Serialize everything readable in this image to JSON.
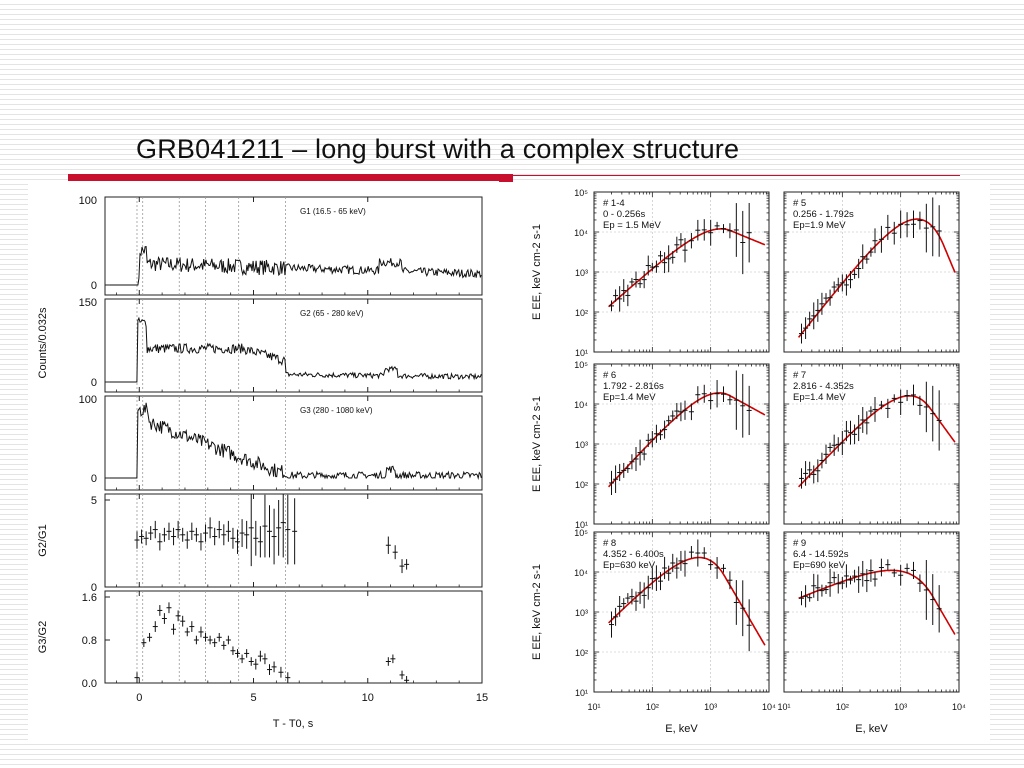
{
  "slide": {
    "title": "GRB041211 – long burst with a complex structure",
    "accent_color": "#c8102e"
  },
  "chart_data": [
    {
      "type": "line",
      "panels": [
        {
          "label": "G1 (16.5 - 65 keV)",
          "ylim": [
            0,
            100
          ],
          "yticks": [
            "100",
            "0"
          ],
          "shape": "g1"
        },
        {
          "label": "G2 (65 - 280 keV)",
          "ylim": [
            0,
            150
          ],
          "yticks": [
            "150",
            "0"
          ],
          "shape": "g2"
        },
        {
          "label": "G3 (280 - 1080 keV)",
          "ylim": [
            0,
            100
          ],
          "yticks": [
            "100",
            "0"
          ],
          "shape": "g3"
        }
      ],
      "ylabel_counts": "Counts/0.032s",
      "xlabel": "T - T0, s",
      "xlim": [
        -1.5,
        15
      ],
      "xticks": [
        "0",
        "5",
        "10",
        "15"
      ],
      "dashed_markers_x": [
        -0.1,
        0.15,
        1.75,
        2.9,
        4.35,
        6.4
      ]
    },
    {
      "type": "scatter",
      "name": "G2/G1",
      "ylabel": "G2/G1",
      "ylim": [
        0,
        5
      ],
      "yticks": [
        "5",
        "0"
      ],
      "x": [
        -0.1,
        0.1,
        0.3,
        0.5,
        0.7,
        0.9,
        1.1,
        1.3,
        1.5,
        1.7,
        1.9,
        2.1,
        2.3,
        2.5,
        2.7,
        2.9,
        3.1,
        3.3,
        3.5,
        3.7,
        3.9,
        4.1,
        4.3,
        4.5,
        4.7,
        4.9,
        5.1,
        5.3,
        5.5,
        5.7,
        5.9,
        6.1,
        6.3,
        6.5,
        6.8,
        10.9,
        11.2,
        11.5,
        11.7
      ],
      "y": [
        2.7,
        2.9,
        2.8,
        3.1,
        3.3,
        2.6,
        3.0,
        3.2,
        2.9,
        3.3,
        3.0,
        2.7,
        3.2,
        3.0,
        2.6,
        3.1,
        3.4,
        2.9,
        3.3,
        3.0,
        3.2,
        2.8,
        2.6,
        3.1,
        3.0,
        3.4,
        2.8,
        2.6,
        3.5,
        3.2,
        2.9,
        3.4,
        3.7,
        3.3,
        3.2,
        2.4,
        2.0,
        1.2,
        1.3
      ],
      "yerr": [
        0.5,
        0.4,
        0.4,
        0.4,
        0.5,
        0.5,
        0.4,
        0.5,
        0.5,
        0.5,
        0.4,
        0.5,
        0.5,
        0.4,
        0.5,
        0.5,
        0.6,
        0.5,
        0.5,
        0.6,
        0.6,
        0.6,
        0.7,
        0.8,
        0.8,
        2.2,
        1.0,
        0.9,
        1.8,
        1.5,
        1.6,
        1.6,
        2.0,
        2.0,
        1.9,
        0.5,
        0.4,
        0.4,
        0.3
      ]
    },
    {
      "type": "scatter",
      "name": "G3/G2",
      "ylabel": "G3/G2",
      "ylim": [
        0,
        1.6
      ],
      "yticks": [
        "1.6",
        "0.8",
        "0.0"
      ],
      "xticks": [
        "0",
        "5",
        "10",
        "15"
      ],
      "xlabel": "T - T0, s",
      "x": [
        -0.1,
        0.2,
        0.45,
        0.7,
        0.9,
        1.1,
        1.3,
        1.5,
        1.7,
        1.9,
        2.1,
        2.3,
        2.5,
        2.7,
        2.9,
        3.1,
        3.3,
        3.5,
        3.7,
        3.9,
        4.1,
        4.3,
        4.5,
        4.7,
        4.9,
        5.1,
        5.3,
        5.5,
        5.7,
        5.9,
        6.2,
        6.5,
        10.9,
        11.1,
        11.5,
        11.7
      ],
      "y": [
        0.1,
        0.75,
        0.85,
        1.05,
        1.35,
        1.2,
        1.4,
        1.0,
        1.25,
        1.15,
        0.95,
        1.05,
        0.8,
        0.95,
        0.85,
        0.8,
        0.75,
        0.85,
        0.7,
        0.8,
        0.6,
        0.55,
        0.45,
        0.55,
        0.4,
        0.35,
        0.5,
        0.45,
        0.25,
        0.3,
        0.2,
        0.1,
        0.4,
        0.45,
        0.15,
        0.05
      ],
      "yerr": [
        0.1,
        0.08,
        0.08,
        0.1,
        0.1,
        0.1,
        0.1,
        0.1,
        0.1,
        0.1,
        0.08,
        0.1,
        0.08,
        0.1,
        0.08,
        0.08,
        0.08,
        0.08,
        0.08,
        0.08,
        0.08,
        0.08,
        0.08,
        0.08,
        0.08,
        0.1,
        0.1,
        0.1,
        0.1,
        0.1,
        0.1,
        0.1,
        0.08,
        0.08,
        0.08,
        0.08
      ]
    },
    {
      "type": "scatter",
      "xlabel": "E, keV",
      "ylabel": "E EE, keV cm-2 s-1",
      "xscale": "log",
      "yscale": "log",
      "xlim": [
        10,
        10000
      ],
      "ylim": [
        10,
        100000
      ],
      "xtick_labels": [
        "10¹",
        "10²",
        "10³",
        "10⁴"
      ],
      "ytick_labels": [
        "10¹",
        "10²",
        "10³",
        "10⁴",
        "10⁵"
      ],
      "fit_color": "#d00000",
      "panels": [
        {
          "lines": [
            "# 1-4",
            "0 - 0.256s",
            "Ep = 1.5 MeV"
          ],
          "fit": {
            "A": 12,
            "alpha": -0.7,
            "Ep": 1500,
            "beta": -2.6
          }
        },
        {
          "lines": [
            "# 5",
            "0.256 - 1.792s",
            "Ep=1.9 MeV"
          ],
          "fit": {
            "A": 21,
            "alpha": -0.15,
            "Ep": 1900,
            "beta": -5.5
          }
        },
        {
          "lines": [
            "# 6",
            "1.792 - 2.816s",
            "Ep=1.4 MeV"
          ],
          "fit": {
            "A": 19,
            "alpha": -0.4,
            "Ep": 1400,
            "beta": -2.8
          }
        },
        {
          "lines": [
            "# 7",
            "2.816 - 4.352s",
            "Ep=1.4 MeV"
          ],
          "fit": {
            "A": 16,
            "alpha": -0.45,
            "Ep": 1400,
            "beta": -4.0
          }
        },
        {
          "lines": [
            "# 8",
            "4.352 - 6.400s",
            "Ep=630 keV"
          ],
          "fit": {
            "A": 23,
            "alpha": -0.55,
            "Ep": 630,
            "beta": -4.5
          }
        },
        {
          "lines": [
            "# 9",
            "6.4 - 14.592s",
            "Ep=690 keV"
          ],
          "fit": {
            "A": 11,
            "alpha": -1.4,
            "Ep": 690,
            "beta": -4.5
          }
        }
      ]
    }
  ]
}
